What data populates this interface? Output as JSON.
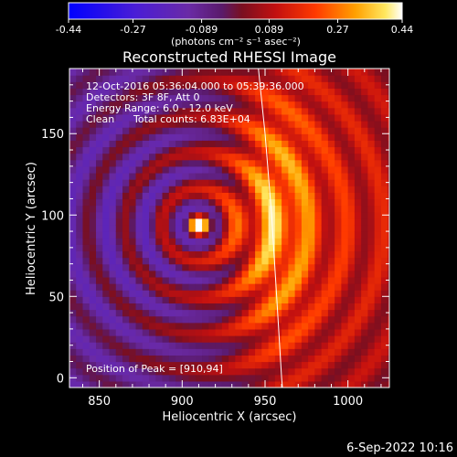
{
  "chart_data": {
    "type": "heatmap",
    "title": "Reconstructed RHESSI Image",
    "xlabel": "Heliocentric X (arcsec)",
    "ylabel": "Heliocentric Y (arcsec)",
    "xlim": [
      832,
      1025
    ],
    "ylim": [
      -6,
      190
    ],
    "x_ticks": [
      850,
      900,
      950,
      1000
    ],
    "y_ticks": [
      0,
      50,
      100,
      150
    ],
    "colorbar": {
      "range": [
        -0.44,
        0.44
      ],
      "ticks": [
        "-0.44",
        "-0.27",
        "-0.089",
        "0.089",
        "0.27",
        "0.44"
      ],
      "unit_label": "(photons cm⁻² s⁻¹ asec⁻²)",
      "colormap": "hot-with-blue-negatives"
    },
    "annotations": {
      "time_range": "12-Oct-2016 05:36:04.000 to 05:39:36.000",
      "detectors": "Detectors: 3F 8F, Att 0",
      "energy_range": "Energy Range: 6.0 - 12.0 keV",
      "method": "Clean",
      "total_counts": "Total counts: 6.83E+04",
      "peak_position": "Position of Peak = [910,94]"
    },
    "peak": {
      "x": 910,
      "y": 94
    },
    "limb_arc": [
      {
        "x": 946,
        "y": 190
      },
      {
        "x": 950,
        "y": 150
      },
      {
        "x": 954,
        "y": 100
      },
      {
        "x": 957,
        "y": 50
      },
      {
        "x": 960,
        "y": 0
      },
      {
        "x": 960.5,
        "y": -6
      }
    ],
    "grid": false
  },
  "footer": {
    "date": "6-Sep-2022 10:16"
  }
}
